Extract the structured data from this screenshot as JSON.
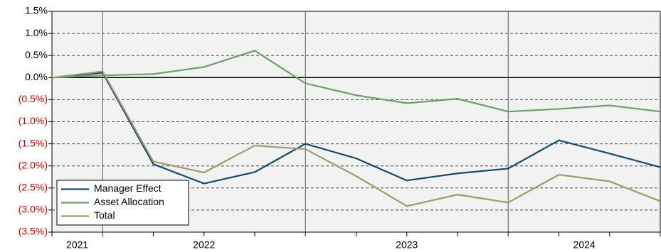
{
  "chart_data": {
    "type": "line",
    "categories": [
      null,
      null,
      null,
      null,
      null,
      null,
      null,
      null,
      null,
      null,
      null,
      null,
      null
    ],
    "year_groups": [
      {
        "label": "2021",
        "start": 0,
        "end": 1
      },
      {
        "label": "2022",
        "start": 1,
        "end": 5
      },
      {
        "label": "2023",
        "start": 5,
        "end": 9
      },
      {
        "label": "2024",
        "start": 9,
        "end": 12
      }
    ],
    "series": [
      {
        "name": "Manager Effect",
        "color": "#154a6e",
        "values": [
          0,
          0.11,
          -1.96,
          -2.4,
          -2.14,
          -1.5,
          -1.83,
          -2.33,
          -2.17,
          -2.06,
          -1.42,
          -1.72,
          -2.03
        ]
      },
      {
        "name": "Asset Allocation",
        "color": "#6a9f6a",
        "values": [
          0,
          0.05,
          0.08,
          0.24,
          0.61,
          -0.13,
          -0.4,
          -0.58,
          -0.48,
          -0.77,
          -0.71,
          -0.63,
          -0.77
        ]
      },
      {
        "name": "Total",
        "color": "#9c9c6c",
        "values": [
          0,
          0.14,
          -1.9,
          -2.15,
          -1.54,
          -1.62,
          -2.23,
          -2.91,
          -2.65,
          -2.83,
          -2.2,
          -2.35,
          -2.8
        ]
      }
    ],
    "ylim": [
      -3.5,
      1.5
    ],
    "yticks": [
      {
        "value": 1.5,
        "label": "1.5%"
      },
      {
        "value": 1,
        "label": "1.0%"
      },
      {
        "value": 0.5,
        "label": "0.5%"
      },
      {
        "value": 0,
        "label": "0.0%"
      },
      {
        "value": -0.5,
        "label": "(0.5%)"
      },
      {
        "value": -1,
        "label": "(1.0%)"
      },
      {
        "value": -1.5,
        "label": "(1.5%)"
      },
      {
        "value": -2,
        "label": "(2.0%)"
      },
      {
        "value": -2.5,
        "label": "(2.5%)"
      },
      {
        "value": -3,
        "label": "(3.0%)"
      },
      {
        "value": -3.5,
        "label": "(3.5%)"
      }
    ],
    "grid": true,
    "negative_tick_color": "#cc0000",
    "legend": "lower-left"
  }
}
